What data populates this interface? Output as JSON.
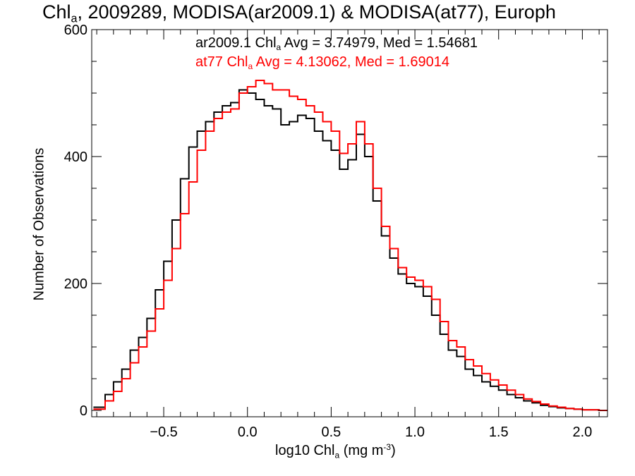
{
  "chart_data": {
    "type": "line",
    "title": {
      "part1": "Chl",
      "sub": "a",
      "part2": ", 2009289, MODISA(ar2009.1) & MODISA(at77), Europh"
    },
    "xlabel": {
      "pre": "log10 Chl",
      "sub": "a",
      "mid": " (mg m",
      "sup": "-3",
      "post": ")"
    },
    "ylabel": "Number of Observations",
    "xlim": [
      -0.93,
      2.15
    ],
    "ylim": [
      -10,
      600
    ],
    "x_ticks": [
      -0.5,
      0.0,
      0.5,
      1.0,
      1.5,
      2.0
    ],
    "x_tick_labels": [
      "−0.5",
      "0.0",
      "0.5",
      "1.0",
      "1.5",
      "2.0"
    ],
    "y_ticks": [
      0,
      200,
      400,
      600
    ],
    "y_tick_labels": [
      "0",
      "200",
      "400",
      "600"
    ],
    "annotations": [
      {
        "pre": "ar2009.1 Chl",
        "sub": "a",
        "post": " Avg = 3.74979, Med = 1.54681",
        "color": "#000000"
      },
      {
        "pre": "at77 Chl",
        "sub": "a",
        "post": " Avg = 4.13062, Med = 1.69014",
        "color": "#ff0000"
      }
    ],
    "series": [
      {
        "color": "#000000",
        "x": [
          -0.92,
          -0.85,
          -0.8,
          -0.75,
          -0.7,
          -0.65,
          -0.6,
          -0.55,
          -0.5,
          -0.45,
          -0.4,
          -0.35,
          -0.3,
          -0.25,
          -0.2,
          -0.15,
          -0.1,
          -0.05,
          0.0,
          0.05,
          0.1,
          0.15,
          0.2,
          0.25,
          0.3,
          0.35,
          0.4,
          0.45,
          0.5,
          0.55,
          0.6,
          0.65,
          0.7,
          0.75,
          0.8,
          0.85,
          0.9,
          0.95,
          1.0,
          1.05,
          1.1,
          1.15,
          1.2,
          1.25,
          1.3,
          1.35,
          1.4,
          1.45,
          1.5,
          1.55,
          1.6,
          1.65,
          1.7,
          1.75,
          1.8,
          1.85,
          1.9,
          1.95,
          2.0,
          2.1
        ],
        "y": [
          5,
          25,
          45,
          65,
          95,
          115,
          145,
          190,
          235,
          300,
          365,
          415,
          440,
          455,
          470,
          480,
          485,
          505,
          500,
          490,
          480,
          475,
          450,
          455,
          465,
          460,
          440,
          425,
          410,
          380,
          395,
          435,
          400,
          330,
          275,
          240,
          215,
          200,
          195,
          180,
          150,
          120,
          95,
          85,
          65,
          55,
          45,
          38,
          32,
          25,
          20,
          15,
          12,
          8,
          6,
          4,
          3,
          2,
          1,
          0
        ]
      },
      {
        "color": "#ff0000",
        "x": [
          -0.92,
          -0.85,
          -0.8,
          -0.75,
          -0.7,
          -0.65,
          -0.6,
          -0.55,
          -0.5,
          -0.45,
          -0.4,
          -0.35,
          -0.3,
          -0.25,
          -0.2,
          -0.15,
          -0.1,
          -0.05,
          0.0,
          0.05,
          0.1,
          0.15,
          0.2,
          0.25,
          0.3,
          0.35,
          0.4,
          0.45,
          0.5,
          0.55,
          0.6,
          0.65,
          0.7,
          0.75,
          0.8,
          0.85,
          0.9,
          0.95,
          1.0,
          1.05,
          1.1,
          1.15,
          1.2,
          1.25,
          1.3,
          1.35,
          1.4,
          1.45,
          1.5,
          1.55,
          1.6,
          1.65,
          1.7,
          1.75,
          1.8,
          1.85,
          1.9,
          1.95,
          2.0,
          2.1
        ],
        "y": [
          2,
          15,
          30,
          50,
          75,
          100,
          125,
          160,
          205,
          255,
          310,
          360,
          410,
          440,
          460,
          470,
          475,
          500,
          510,
          520,
          515,
          505,
          505,
          495,
          490,
          480,
          470,
          455,
          440,
          405,
          420,
          455,
          420,
          350,
          290,
          255,
          225,
          210,
          205,
          195,
          175,
          140,
          110,
          100,
          80,
          70,
          58,
          48,
          40,
          32,
          25,
          18,
          14,
          10,
          7,
          5,
          3,
          2,
          1,
          0
        ]
      }
    ]
  }
}
